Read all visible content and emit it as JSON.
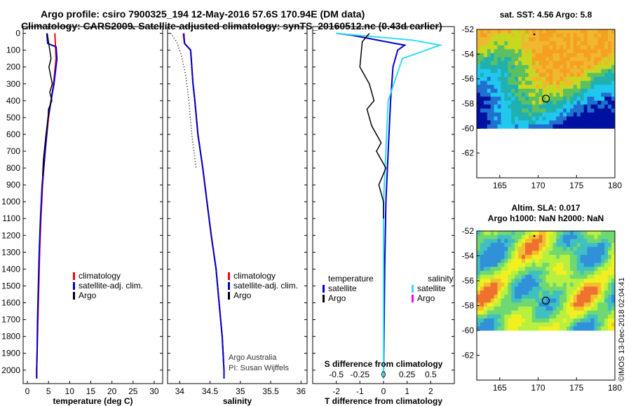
{
  "titles": {
    "line1": "Argo profile: csiro 7900325_194 12-May-2016 57.6S 170.94E (DM data)",
    "line2": "Climatology: CARS2009. Satellite-adjusted climatology: synTS_20160512.nc (0.43d earlier)"
  },
  "colors": {
    "climatology": "#ff0000",
    "satellite": "#0000cc",
    "argo": "#000000",
    "satellite_salinity": "#33ddee",
    "argo_salinity": "#ff00ff"
  },
  "credits": {
    "argo": "Argo Australia",
    "pi": "PI: Susan Wijffels",
    "imos": "©IMOS 13-Dec-2018 02:04:41"
  },
  "chart_data": [
    {
      "type": "line",
      "xlabel": "temperature (deg C)",
      "ylabel": "",
      "xlim": [
        -1,
        32
      ],
      "ylim": [
        2080,
        0
      ],
      "xticks": [
        0,
        5,
        10,
        15,
        20,
        25,
        30
      ],
      "yticks": [
        0,
        100,
        200,
        300,
        400,
        500,
        600,
        700,
        800,
        900,
        1000,
        1100,
        1200,
        1300,
        1400,
        1500,
        1600,
        1700,
        1800,
        1900,
        2000
      ],
      "legend": [
        "climatology",
        "satellite-adj. clim.",
        "Argo"
      ],
      "legend_position": "lower-center",
      "series": [
        {
          "name": "climatology",
          "color": "#ff0000",
          "x": [
            6.5,
            6.7,
            6.8,
            6.2,
            5.6,
            5.0,
            4.2,
            3.6,
            3.2,
            2.9,
            2.7,
            2.5,
            2.3,
            2.2,
            2.2
          ],
          "y": [
            0,
            100,
            150,
            300,
            400,
            500,
            700,
            900,
            1100,
            1300,
            1500,
            1700,
            1900,
            2000,
            2050
          ]
        },
        {
          "name": "satellite-adj. clim.",
          "color": "#0000cc",
          "x": [
            4.6,
            4.8,
            6.8,
            7.0,
            6.3,
            5.6,
            4.9,
            4.2,
            3.5,
            3.1,
            2.8,
            2.6,
            2.4,
            2.3,
            2.2,
            2.2
          ],
          "y": [
            0,
            60,
            80,
            150,
            300,
            400,
            500,
            700,
            900,
            1100,
            1300,
            1500,
            1700,
            1900,
            2000,
            2050
          ]
        },
        {
          "name": "Argo",
          "color": "#000000",
          "x": [
            4.7,
            5.0,
            5.3,
            5.6,
            5.1,
            5.9,
            5.3,
            5.8,
            5.0,
            4.9,
            4.4,
            4.2,
            3.8,
            3.6
          ],
          "y": [
            0,
            50,
            100,
            150,
            200,
            300,
            350,
            400,
            450,
            500,
            600,
            650,
            750,
            850
          ]
        }
      ]
    },
    {
      "type": "line",
      "xlabel": "salinity",
      "ylabel": "",
      "xlim": [
        33.8,
        36.1
      ],
      "ylim": [
        2080,
        0
      ],
      "xticks": [
        34,
        34.5,
        35,
        35.5,
        36
      ],
      "legend": [
        "climatology",
        "satellite-adj. clim.",
        "Argo"
      ],
      "legend_position": "lower-center",
      "series": [
        {
          "name": "climatology",
          "color": "#ff0000",
          "x": [
            34.07,
            34.08,
            34.18,
            34.2,
            34.22,
            34.25,
            34.3,
            34.38,
            34.45,
            34.52,
            34.6,
            34.65,
            34.7,
            34.73,
            34.73
          ],
          "y": [
            0,
            60,
            100,
            200,
            300,
            400,
            600,
            800,
            1000,
            1200,
            1400,
            1600,
            1800,
            2000,
            2050
          ]
        },
        {
          "name": "satellite-adj. clim.",
          "color": "#0000cc",
          "x": [
            34.06,
            34.08,
            34.18,
            34.2,
            34.22,
            34.25,
            34.3,
            34.38,
            34.45,
            34.52,
            34.6,
            34.65,
            34.7,
            34.73,
            34.73
          ],
          "y": [
            0,
            60,
            100,
            200,
            300,
            400,
            600,
            800,
            1000,
            1200,
            1400,
            1600,
            1800,
            2000,
            2050
          ]
        },
        {
          "name": "Argo",
          "color": "#000000",
          "x": [
            33.85,
            33.95,
            34.02,
            34.1,
            34.15,
            34.2,
            34.27
          ],
          "y": [
            0,
            50,
            120,
            250,
            400,
            600,
            800
          ]
        }
      ]
    },
    {
      "type": "line",
      "xlabel": "T difference from climatology",
      "xlabel2": "S difference from climatology",
      "xlim": [
        -3,
        3
      ],
      "ylim": [
        2080,
        0
      ],
      "xticks": [
        -2,
        -1,
        0,
        1,
        2
      ],
      "xtick_labels": [
        "-2",
        "-1",
        "0",
        "1",
        "2"
      ],
      "xticks2": [
        "-0.5",
        "-0.25",
        "0",
        "0.25",
        "0.5"
      ],
      "legend_temperature": {
        "title": "temperature",
        "items": [
          "satellite",
          "Argo"
        ]
      },
      "legend_salinity": {
        "title": "salinity",
        "items": [
          "satellite",
          "Argo"
        ]
      },
      "series": [
        {
          "name": "temperature satellite",
          "color": "#0000cc",
          "x": [
            -2.0,
            -1.4,
            0.5,
            0.9,
            0.6,
            0.4,
            0.3,
            0.2,
            0.1,
            0.05,
            0.02,
            0.0
          ],
          "y": [
            0,
            10,
            60,
            70,
            100,
            200,
            400,
            700,
            1000,
            1400,
            1800,
            2050
          ]
        },
        {
          "name": "salinity satellite",
          "color": "#33ddee",
          "x": [
            -0.5,
            -0.3,
            0.3,
            0.6,
            0.2,
            0.05,
            0.0,
            0.0
          ],
          "y": [
            0,
            10,
            40,
            70,
            150,
            400,
            1000,
            2050
          ]
        },
        {
          "name": "temperature Argo",
          "color": "#000000",
          "x": [
            -0.6,
            -0.9,
            -1.0,
            -0.6,
            -0.4,
            -0.7,
            -0.5,
            -0.1,
            -0.3,
            0.1,
            -0.2,
            0.0,
            0.0
          ],
          "y": [
            0,
            50,
            200,
            300,
            400,
            450,
            550,
            650,
            700,
            800,
            900,
            1000,
            1100
          ]
        }
      ]
    },
    {
      "type": "heatmap",
      "title": "sat. SST: 4.56 Argo: 5.8",
      "xlim": [
        162,
        180
      ],
      "ylim": [
        -64,
        -52
      ],
      "xticks": [
        165,
        170,
        175,
        180
      ],
      "yticks": [
        -52,
        -54,
        -56,
        -58,
        -60,
        -62
      ],
      "marker": {
        "lon": 171,
        "lat": -57.6
      }
    },
    {
      "type": "heatmap",
      "title": "Altim. SLA: 0.017",
      "subtitle": "Argo h1000: NaN h2000: NaN",
      "xlim": [
        162,
        180
      ],
      "ylim": [
        -64,
        -52
      ],
      "xticks": [
        165,
        170,
        175,
        180
      ],
      "yticks": [
        -52,
        -54,
        -56,
        -58,
        -60,
        -62
      ],
      "marker": {
        "lon": 171,
        "lat": -57.6
      }
    }
  ]
}
